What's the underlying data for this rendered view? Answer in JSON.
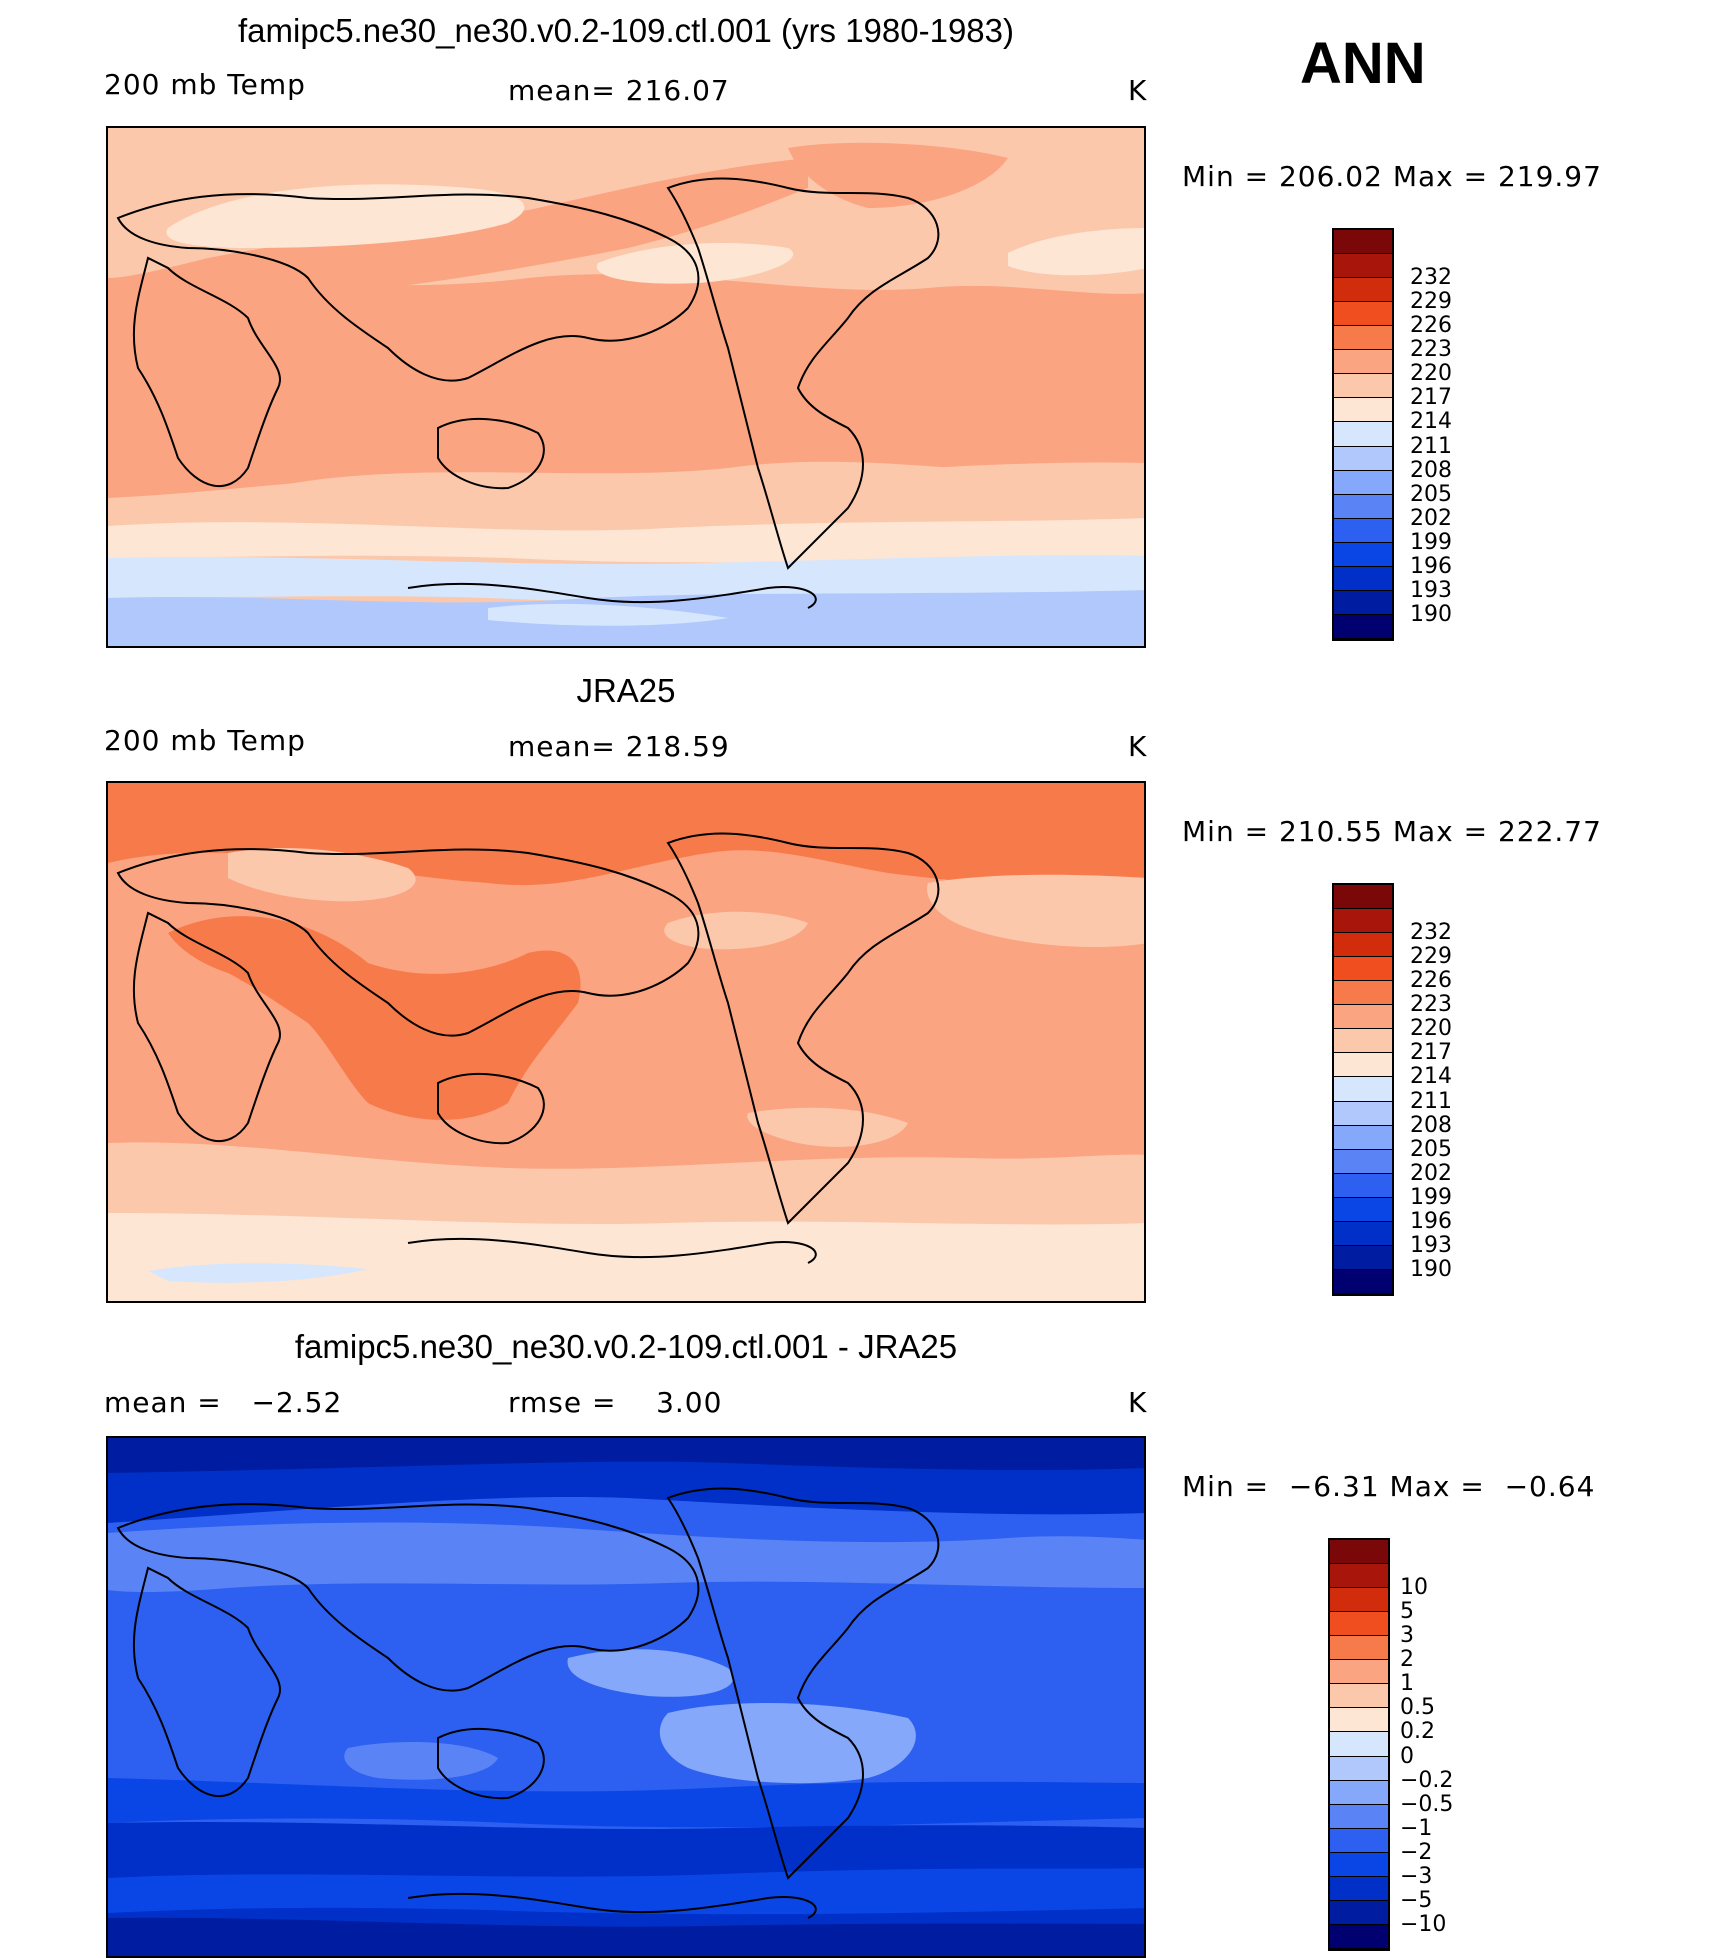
{
  "header": {
    "season": "ANN"
  },
  "panels": [
    {
      "title": "famipc5.ne30_ne30.v0.2-109.ctl.001 (yrs 1980-1983)",
      "left_label": "200 mb Temp",
      "center_label": "mean= 216.07",
      "units": "K",
      "minmax": "Min = 206.02 Max = 219.97"
    },
    {
      "title": "JRA25",
      "left_label": "200 mb Temp",
      "center_label": "mean= 218.59",
      "units": "K",
      "minmax": "Min = 210.55 Max = 222.77"
    },
    {
      "title": "famipc5.ne30_ne30.v0.2-109.ctl.001 - JRA25",
      "left_label": "mean =   −2.52",
      "center_label": "rmse =    3.00",
      "units": "K",
      "minmax": "Min =  −6.31 Max =  −0.64"
    }
  ],
  "chart_data": [
    {
      "type": "heatmap",
      "title": "famipc5.ne30_ne30.v0.2-109.ctl.001 (yrs 1980-1983)",
      "variable": "200 mb Temp",
      "units": "K",
      "mean": 216.07,
      "min": 206.02,
      "max": 219.97,
      "contour_levels": [
        190,
        193,
        196,
        199,
        202,
        205,
        208,
        211,
        214,
        217,
        220,
        223,
        226,
        229,
        232
      ],
      "colorbar_colors": [
        "#000070",
        "#001ca0",
        "#0030c8",
        "#0a46e6",
        "#2d60f0",
        "#5a84f5",
        "#86a8fa",
        "#b0c8fc",
        "#d6e6fd",
        "#fde6d4",
        "#fcc8ac",
        "#fba482",
        "#f77a4a",
        "#f04e1e",
        "#d12c0c",
        "#a8150a",
        "#7a0808"
      ]
    },
    {
      "type": "heatmap",
      "title": "JRA25",
      "variable": "200 mb Temp",
      "units": "K",
      "mean": 218.59,
      "min": 210.55,
      "max": 222.77,
      "contour_levels": [
        190,
        193,
        196,
        199,
        202,
        205,
        208,
        211,
        214,
        217,
        220,
        223,
        226,
        229,
        232
      ],
      "colorbar_colors": [
        "#000070",
        "#001ca0",
        "#0030c8",
        "#0a46e6",
        "#2d60f0",
        "#5a84f5",
        "#86a8fa",
        "#b0c8fc",
        "#d6e6fd",
        "#fde6d4",
        "#fcc8ac",
        "#fba482",
        "#f77a4a",
        "#f04e1e",
        "#d12c0c",
        "#a8150a",
        "#7a0808"
      ]
    },
    {
      "type": "heatmap",
      "title": "famipc5.ne30_ne30.v0.2-109.ctl.001 - JRA25",
      "units": "K",
      "mean": -2.52,
      "rmse": 3.0,
      "min": -6.31,
      "max": -0.64,
      "contour_levels": [
        "−10",
        "−5",
        "−3",
        "−2",
        "−1",
        "−0.5",
        "−0.2",
        "0",
        "0.2",
        "0.5",
        "1",
        "2",
        "3",
        "5",
        "10"
      ],
      "colorbar_colors": [
        "#000070",
        "#001ca0",
        "#0030c8",
        "#0a46e6",
        "#2d60f0",
        "#5a84f5",
        "#86a8fa",
        "#b0c8fc",
        "#d6e6fd",
        "#fde6d4",
        "#fcc8ac",
        "#fba482",
        "#f77a4a",
        "#f04e1e",
        "#d12c0c",
        "#a8150a",
        "#7a0808"
      ]
    }
  ]
}
